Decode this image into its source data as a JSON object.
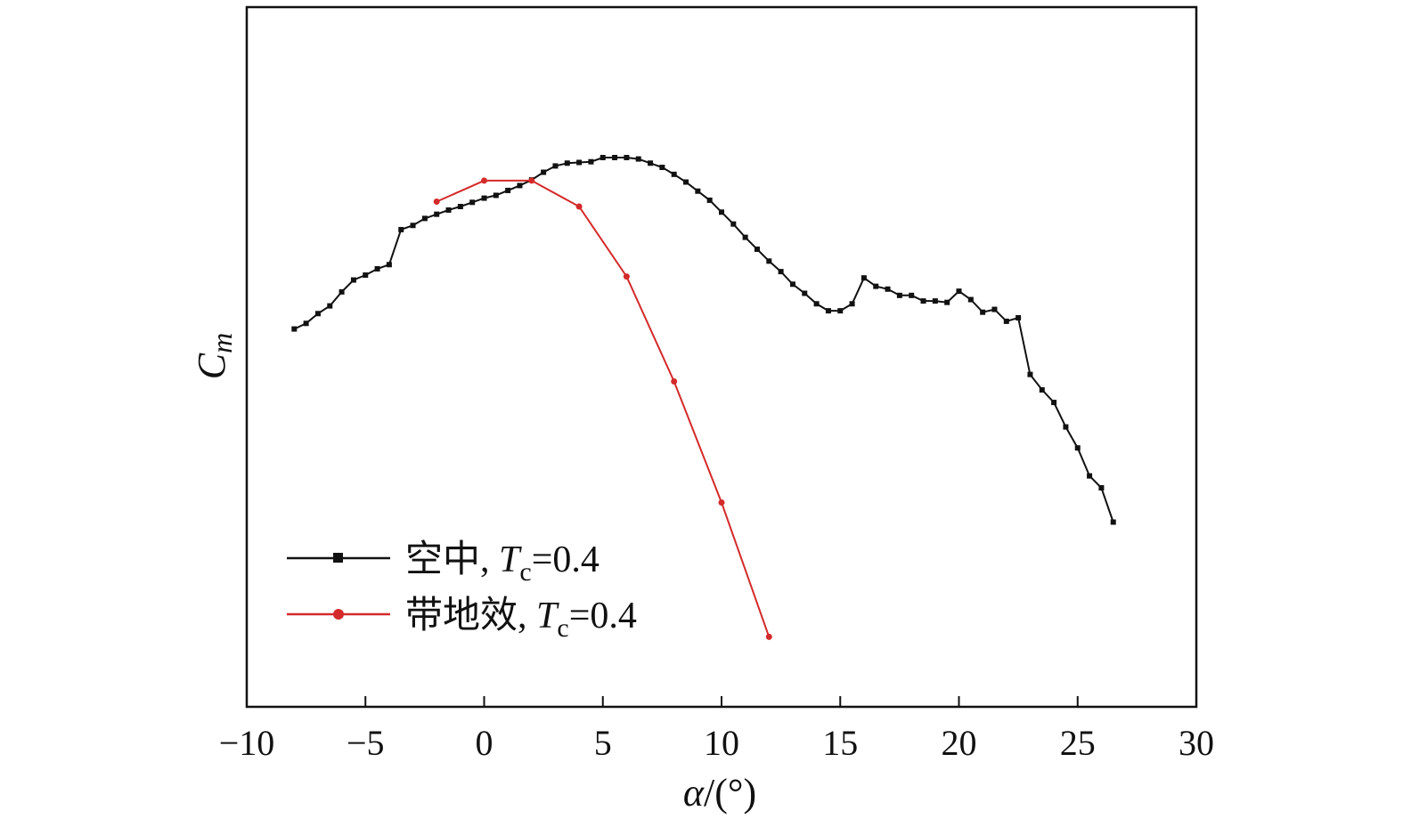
{
  "chart_data": {
    "type": "line",
    "xlabel": {
      "symbol": "α",
      "rest": "/(°)"
    },
    "ylabel": {
      "symbol": "C",
      "sub": "m"
    },
    "xlim": [
      -10,
      30
    ],
    "ylim": [
      0,
      1
    ],
    "xticks": [
      -10,
      -5,
      0,
      5,
      10,
      15,
      20,
      25,
      30
    ],
    "xtick_labels": [
      "−10",
      "−5",
      "0",
      "5",
      "10",
      "15",
      "20",
      "25",
      "30"
    ],
    "grid": false,
    "legend_position": "bottom-left",
    "series": [
      {
        "name": "空中, Tc=0.4",
        "legend": {
          "prefix": "空中, ",
          "T": "T",
          "sub": "c",
          "suffix": "=0.4"
        },
        "color": "#111111",
        "marker": "square",
        "x": [
          -8.0,
          -7.5,
          -7.0,
          -6.5,
          -6.0,
          -5.5,
          -5.0,
          -4.5,
          -4.0,
          -3.5,
          -3.0,
          -2.5,
          -2.0,
          -1.5,
          -1.0,
          -0.5,
          0.0,
          0.5,
          1.0,
          1.5,
          2.0,
          2.5,
          3.0,
          3.5,
          4.0,
          4.5,
          5.0,
          5.5,
          6.0,
          6.5,
          7.0,
          7.5,
          8.0,
          8.5,
          9.0,
          9.5,
          10.0,
          10.5,
          11.0,
          11.5,
          12.0,
          12.5,
          13.0,
          13.5,
          14.0,
          14.5,
          15.0,
          15.5,
          16.0,
          16.5,
          17.0,
          17.5,
          18.0,
          18.5,
          19.0,
          19.5,
          20.0,
          20.5,
          21.0,
          21.5,
          22.0,
          22.5,
          23.0,
          23.5,
          24.0,
          24.5,
          25.0,
          25.5,
          26.0,
          26.5
        ],
        "y": [
          0.54,
          0.548,
          0.562,
          0.573,
          0.593,
          0.61,
          0.617,
          0.626,
          0.632,
          0.682,
          0.688,
          0.698,
          0.704,
          0.71,
          0.715,
          0.721,
          0.727,
          0.731,
          0.738,
          0.745,
          0.753,
          0.764,
          0.773,
          0.777,
          0.778,
          0.779,
          0.785,
          0.785,
          0.785,
          0.783,
          0.777,
          0.771,
          0.761,
          0.75,
          0.737,
          0.724,
          0.707,
          0.69,
          0.671,
          0.654,
          0.637,
          0.622,
          0.604,
          0.591,
          0.576,
          0.566,
          0.566,
          0.576,
          0.613,
          0.601,
          0.597,
          0.588,
          0.588,
          0.58,
          0.58,
          0.578,
          0.594,
          0.582,
          0.564,
          0.568,
          0.551,
          0.556,
          0.475,
          0.453,
          0.435,
          0.4,
          0.37,
          0.33,
          0.313,
          0.264
        ]
      },
      {
        "name": "带地效, Tc=0.4",
        "legend": {
          "prefix": "带地效, ",
          "T": "T",
          "sub": "c",
          "suffix": "=0.4"
        },
        "color": "#d42a2a",
        "marker": "circle",
        "x": [
          -2,
          0,
          2,
          4,
          6,
          8,
          10,
          12
        ],
        "y": [
          0.722,
          0.752,
          0.752,
          0.715,
          0.615,
          0.465,
          0.292,
          0.1
        ]
      }
    ]
  }
}
